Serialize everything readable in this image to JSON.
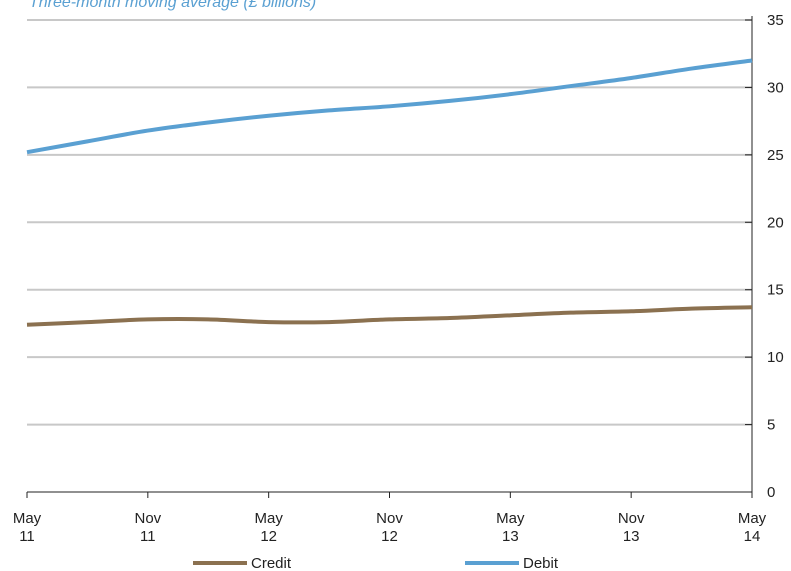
{
  "chart_data": {
    "type": "line",
    "subtitle": "Three-month moving average (£ billions)",
    "x": [
      "2011-05",
      "2011-08",
      "2011-11",
      "2012-02",
      "2012-05",
      "2012-08",
      "2012-11",
      "2013-02",
      "2013-05",
      "2013-08",
      "2013-11",
      "2014-02",
      "2014-05"
    ],
    "x_tick_labels": [
      [
        "May",
        "11"
      ],
      [
        "Nov",
        "11"
      ],
      [
        "May",
        "12"
      ],
      [
        "Nov",
        "12"
      ],
      [
        "May",
        "13"
      ],
      [
        "Nov",
        "13"
      ],
      [
        "May",
        "14"
      ]
    ],
    "ylim": [
      0,
      35
    ],
    "y_ticks": [
      0,
      5,
      10,
      15,
      20,
      25,
      30,
      35
    ],
    "y_axis_position": "right",
    "grid": true,
    "legend_position": "bottom",
    "series": [
      {
        "name": "Credit",
        "color": "#8b7150",
        "values": [
          12.4,
          12.6,
          12.8,
          12.8,
          12.6,
          12.6,
          12.8,
          12.9,
          13.1,
          13.3,
          13.4,
          13.6,
          13.7
        ]
      },
      {
        "name": "Debit",
        "color": "#5aa0d2",
        "values": [
          25.2,
          26.0,
          26.8,
          27.4,
          27.9,
          28.3,
          28.6,
          29.0,
          29.5,
          30.1,
          30.7,
          31.4,
          32.0
        ]
      }
    ]
  }
}
